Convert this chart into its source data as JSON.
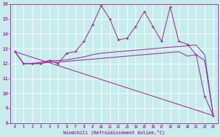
{
  "xlabel": "Windchill (Refroidissement éolien,°C)",
  "bg_color": "#c8ecec",
  "line_color": "#993399",
  "xlim": [
    -0.5,
    23.5
  ],
  "ylim": [
    8,
    16
  ],
  "xticks": [
    0,
    1,
    2,
    3,
    4,
    5,
    6,
    7,
    8,
    9,
    10,
    11,
    12,
    13,
    14,
    15,
    16,
    17,
    18,
    19,
    20,
    21,
    22,
    23
  ],
  "yticks": [
    8,
    9,
    10,
    11,
    12,
    13,
    14,
    15,
    16
  ],
  "series1_x": [
    0,
    1,
    2,
    3,
    4,
    5,
    6,
    7,
    8,
    9,
    10,
    11,
    12,
    13,
    14,
    15,
    16,
    17,
    18,
    19,
    20,
    21,
    22,
    23
  ],
  "series1_y": [
    12.8,
    12.0,
    12.0,
    12.0,
    12.2,
    12.0,
    12.7,
    12.8,
    13.5,
    14.6,
    15.9,
    15.0,
    13.6,
    13.7,
    14.5,
    15.5,
    14.5,
    13.5,
    15.8,
    13.5,
    13.3,
    12.6,
    9.8,
    8.5
  ],
  "series2_x": [
    0,
    1,
    2,
    3,
    4,
    5,
    6,
    7,
    8,
    9,
    10,
    11,
    12,
    13,
    14,
    15,
    16,
    17,
    18,
    19,
    20,
    21,
    22,
    23
  ],
  "series2_y": [
    12.8,
    12.0,
    12.0,
    12.1,
    12.2,
    12.2,
    12.25,
    12.35,
    12.45,
    12.6,
    12.7,
    12.75,
    12.8,
    12.85,
    12.9,
    12.95,
    13.0,
    13.05,
    13.1,
    13.15,
    13.2,
    13.25,
    12.6,
    8.5
  ],
  "series3_x": [
    0,
    1,
    2,
    3,
    4,
    5,
    6,
    7,
    8,
    9,
    10,
    11,
    12,
    13,
    14,
    15,
    16,
    17,
    18,
    19,
    20,
    21,
    22,
    23
  ],
  "series3_y": [
    12.8,
    12.0,
    12.0,
    12.0,
    12.1,
    12.1,
    12.15,
    12.2,
    12.25,
    12.3,
    12.35,
    12.4,
    12.45,
    12.5,
    12.55,
    12.6,
    12.65,
    12.7,
    12.75,
    12.8,
    12.5,
    12.6,
    12.2,
    8.5
  ],
  "series4_x": [
    0,
    23
  ],
  "series4_y": [
    12.8,
    8.5
  ]
}
